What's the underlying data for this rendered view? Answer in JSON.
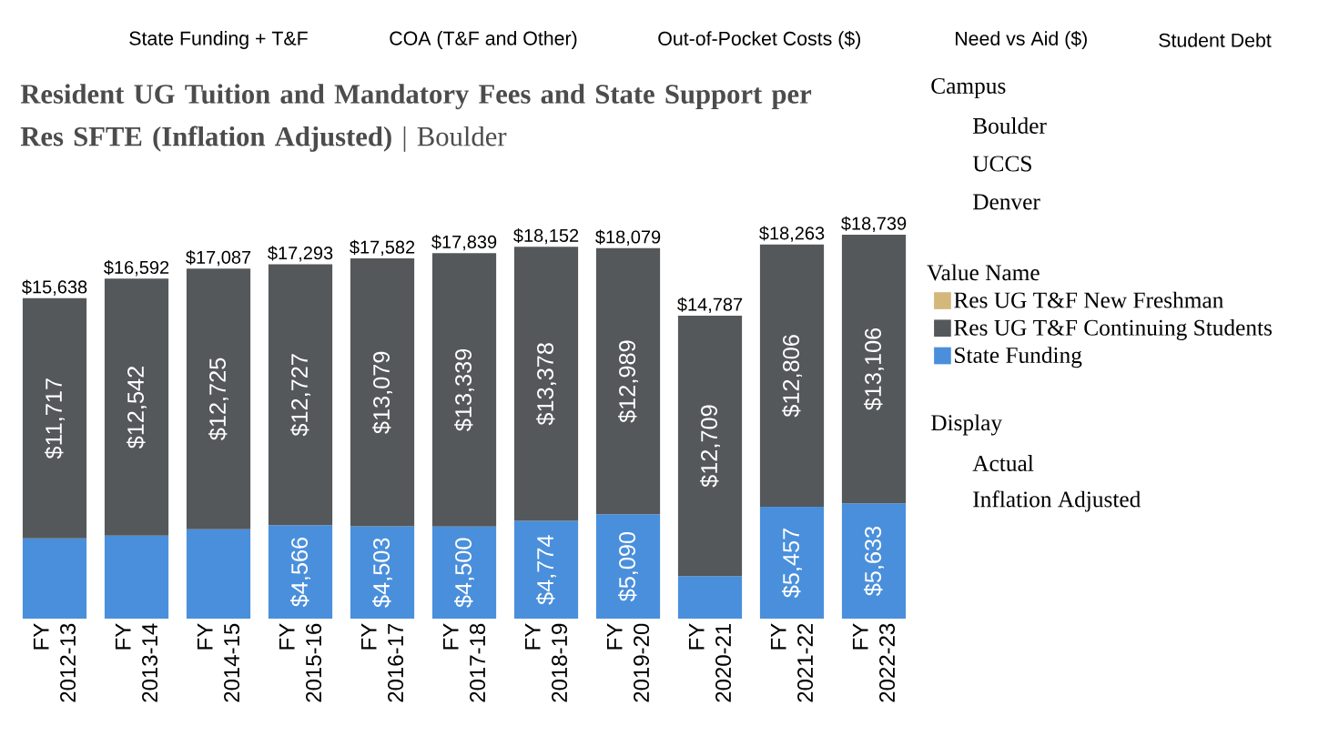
{
  "chart_data": {
    "type": "bar",
    "stacked": true,
    "title": "**Resident UG Tuition and Mandatory Fees and State Support per Res SFTE (Inflation Adjusted)** | Boulder",
    "legend_title": "Value Name",
    "legend": "right",
    "categories": [
      "FY 2012-13",
      "FY 2013-14",
      "FY 2014-15",
      "FY 2015-16",
      "FY 2016-17",
      "FY 2017-18",
      "FY 2018-19",
      "FY 2019-20",
      "FY 2020-21",
      "FY 2021-22",
      "FY 2022-23"
    ],
    "series": [
      {
        "name": "State Funding",
        "color": "#4a8fdc",
        "values": [
          3921,
          4050,
          4362,
          4566,
          4503,
          4500,
          4774,
          5090,
          2078,
          5457,
          5633
        ],
        "value_labels": [
          null,
          null,
          null,
          "$4,566",
          "$4,503",
          "$4,500",
          "$4,774",
          "$5,090",
          null,
          "$5,457",
          "$5,633"
        ]
      },
      {
        "name": "Res UG T&F Continuing Students",
        "color": "#54585a",
        "values": [
          11717,
          12542,
          12725,
          12727,
          13079,
          13339,
          13378,
          12989,
          12709,
          12806,
          13106
        ],
        "value_labels": [
          "$11,717",
          "$12,542",
          "$12,725",
          "$12,727",
          "$13,079",
          "$13,339",
          "$13,378",
          "$12,989",
          "$12,709",
          "$12,806",
          "$13,106"
        ]
      },
      {
        "name": "Res UG T&F New Freshman",
        "color": "#d4b77a",
        "values": [
          null,
          null,
          null,
          null,
          null,
          null,
          null,
          null,
          null,
          null,
          null
        ]
      }
    ],
    "totals": [
      "$15,638",
      "$16,592",
      "$17,087",
      "$17,293",
      "$17,582",
      "$17,839",
      "$18,152",
      "$18,079",
      "$14,787",
      "$18,263",
      "$18,739"
    ],
    "annotations": [
      "State Funding + T&F",
      "COA (T&F and Other)",
      "Out-of-Pocket Costs ($)",
      "Need vs Aid ($)",
      "Student Debt",
      "Campus",
      "Boulder",
      "UCCS",
      "Denver",
      "Display",
      "Actual",
      "Inflation Adjusted"
    ]
  }
}
